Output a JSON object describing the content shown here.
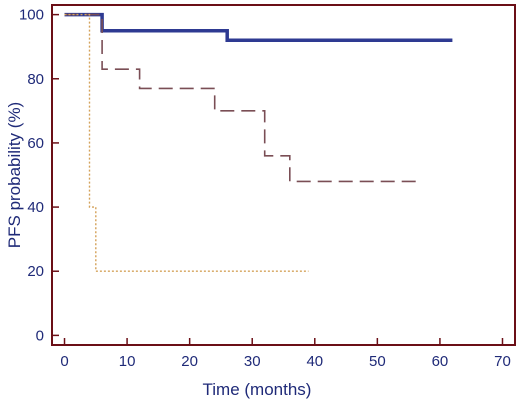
{
  "chart_data": {
    "type": "line",
    "xlabel": "Time (months)",
    "ylabel": "PFS probability (%)",
    "xlim": [
      -2,
      72
    ],
    "ylim": [
      -3,
      103
    ],
    "x_ticks": [
      0,
      10,
      20,
      30,
      40,
      50,
      60,
      70
    ],
    "y_ticks": [
      0,
      20,
      40,
      60,
      80,
      100
    ],
    "grid": false,
    "legend": "none",
    "frame_color": "#6b0f16",
    "series": [
      {
        "style": "solid",
        "color": "#2e3a92",
        "x": [
          0,
          6,
          6,
          26,
          26,
          62
        ],
        "y": [
          100,
          100,
          95,
          95,
          92,
          92
        ]
      },
      {
        "style": "dashed",
        "color": "#7a4e55",
        "x": [
          0,
          6,
          6,
          12,
          12,
          24,
          24,
          32,
          32,
          36,
          36,
          57
        ],
        "y": [
          100,
          100,
          83,
          83,
          77,
          77,
          70,
          70,
          56,
          56,
          48,
          48
        ]
      },
      {
        "style": "dotted",
        "color": "#d4a25a",
        "x": [
          0,
          4,
          4,
          5,
          5,
          39
        ],
        "y": [
          100,
          100,
          40,
          40,
          20,
          20
        ]
      }
    ]
  }
}
